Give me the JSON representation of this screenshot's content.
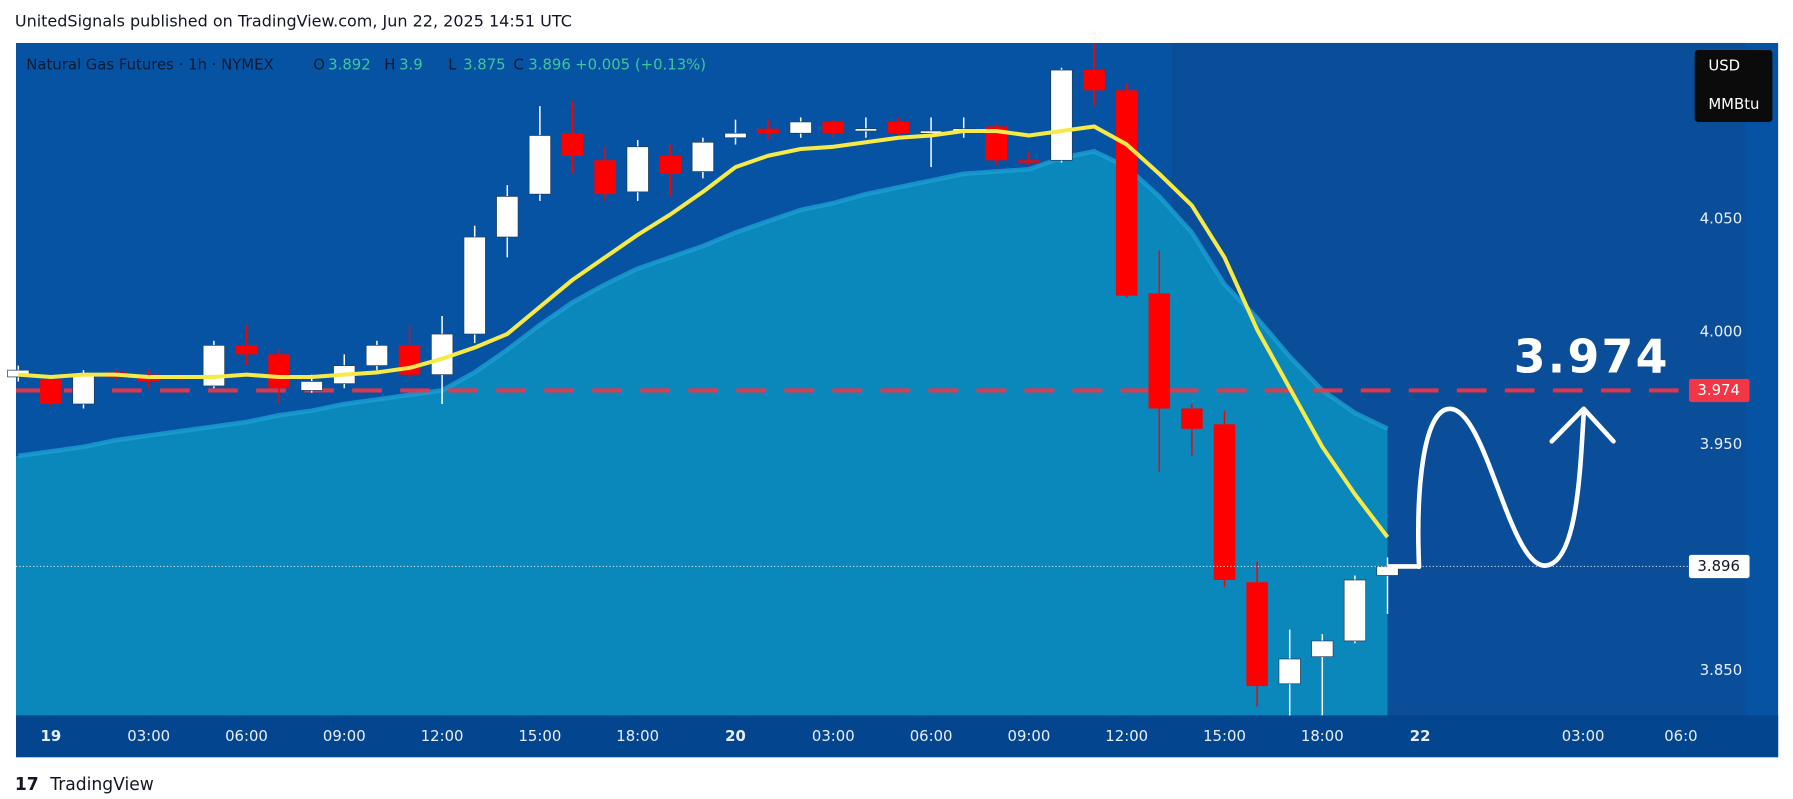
{
  "header": {
    "text": "UnitedSignals published on TradingView.com, Jun 22, 2025 14:51 UTC"
  },
  "footer": {
    "logo": "TradingView"
  },
  "chart_data": {
    "type": "candlestick",
    "title": "Natural Gas Futures · 1h · NYMEX",
    "ohlc_labels": [
      "O",
      "H",
      "L",
      "C"
    ],
    "change": "+0.005 (+0.13%)",
    "currency": "USD",
    "unit": "MMBtu",
    "x": [
      0,
      1,
      2,
      3,
      4,
      5,
      6,
      7,
      8,
      9,
      10,
      11,
      12,
      13,
      14,
      15,
      16,
      17,
      18,
      19,
      20,
      21,
      22,
      23,
      24,
      25,
      26,
      27,
      28,
      29,
      30,
      31,
      32,
      33,
      34,
      35,
      36,
      37,
      38,
      39,
      40,
      41,
      42
    ],
    "open": [
      3.98,
      3.979,
      3.968,
      3.982,
      3.981,
      3.98,
      3.976,
      3.994,
      3.99,
      3.974,
      3.977,
      3.985,
      3.994,
      3.981,
      3.999,
      4.042,
      4.061,
      4.088,
      4.076,
      4.062,
      4.078,
      4.071,
      4.086,
      4.09,
      4.088,
      4.093,
      4.089,
      4.093,
      4.088,
      4.089,
      4.091,
      4.076,
      4.076,
      4.116,
      4.107,
      4.017,
      3.966,
      3.959,
      3.889,
      3.844,
      3.856,
      3.863,
      3.892
    ],
    "high": [
      3.985,
      3.98,
      3.983,
      3.983,
      3.983,
      3.981,
      3.996,
      4.003,
      3.992,
      3.981,
      3.99,
      3.996,
      4.003,
      4.007,
      4.047,
      4.065,
      4.1,
      4.102,
      4.082,
      4.085,
      4.083,
      4.086,
      4.094,
      4.094,
      4.095,
      4.094,
      4.095,
      4.095,
      4.095,
      4.095,
      4.092,
      4.08,
      4.117,
      4.128,
      4.11,
      4.036,
      3.968,
      3.965,
      3.898,
      3.868,
      3.866,
      3.892,
      3.9
    ],
    "low": [
      3.978,
      3.967,
      3.966,
      3.979,
      3.975,
      3.978,
      3.975,
      3.985,
      3.968,
      3.973,
      3.975,
      3.983,
      3.979,
      3.968,
      3.995,
      4.033,
      4.058,
      4.07,
      4.058,
      4.058,
      4.06,
      4.068,
      4.083,
      4.085,
      4.086,
      4.086,
      4.086,
      4.085,
      4.073,
      4.086,
      4.074,
      4.074,
      4.075,
      4.1,
      4.015,
      3.938,
      3.945,
      3.887,
      3.834,
      3.83,
      3.83,
      3.862,
      3.875
    ],
    "close": [
      3.983,
      3.968,
      3.981,
      3.98,
      3.978,
      3.979,
      3.994,
      3.99,
      3.975,
      3.978,
      3.985,
      3.994,
      3.981,
      3.999,
      4.042,
      4.06,
      4.087,
      4.078,
      4.061,
      4.082,
      4.07,
      4.084,
      4.088,
      4.088,
      4.093,
      4.088,
      4.09,
      4.088,
      4.089,
      4.09,
      4.076,
      4.075,
      4.116,
      4.107,
      4.016,
      3.966,
      3.957,
      3.89,
      3.843,
      3.855,
      3.863,
      3.89,
      3.896
    ],
    "up_color": "#ffffff",
    "down_color": "#ff0000",
    "series": [
      {
        "color": "#f7ea48",
        "values": [
          3.981,
          3.98,
          3.981,
          3.981,
          3.98,
          3.98,
          3.98,
          3.981,
          3.98,
          3.98,
          3.981,
          3.982,
          3.984,
          3.988,
          3.993,
          3.999,
          4.011,
          4.023,
          4.033,
          4.043,
          4.052,
          4.062,
          4.073,
          4.078,
          4.081,
          4.082,
          4.084,
          4.086,
          4.087,
          4.089,
          4.089,
          4.087,
          4.089,
          4.091,
          4.083,
          4.07,
          4.056,
          4.033,
          4.001,
          3.975,
          3.949,
          3.928,
          3.909
        ]
      },
      {
        "color": "#1b9fd3",
        "area": true,
        "values": [
          3.945,
          3.947,
          3.949,
          3.952,
          3.954,
          3.956,
          3.958,
          3.96,
          3.963,
          3.965,
          3.968,
          3.97,
          3.972,
          3.974,
          3.982,
          3.992,
          4.003,
          4.013,
          4.021,
          4.028,
          4.033,
          4.038,
          4.044,
          4.049,
          4.054,
          4.057,
          4.061,
          4.064,
          4.067,
          4.07,
          4.071,
          4.072,
          4.077,
          4.08,
          4.073,
          4.06,
          4.044,
          4.021,
          4.006,
          3.989,
          3.974,
          3.964,
          3.957
        ]
      }
    ],
    "hline": {
      "value": 3.974,
      "color": "#f23645"
    },
    "xlim": [
      -0.07,
      53.0
    ],
    "ylim": [
      3.83,
      4.128
    ],
    "xticks": [
      {
        "value": 1,
        "label": "19"
      },
      {
        "value": 4,
        "label": "03:00"
      },
      {
        "value": 7,
        "label": "06:00"
      },
      {
        "value": 10,
        "label": "09:00"
      },
      {
        "value": 13,
        "label": "12:00"
      },
      {
        "value": 16,
        "label": "15:00"
      },
      {
        "value": 19,
        "label": "18:00"
      },
      {
        "value": 22,
        "label": "20"
      },
      {
        "value": 25,
        "label": "03:00"
      },
      {
        "value": 28,
        "label": "06:00"
      },
      {
        "value": 31,
        "label": "09:00"
      },
      {
        "value": 34,
        "label": "12:00"
      },
      {
        "value": 37,
        "label": "15:00"
      },
      {
        "value": 40,
        "label": "18:00"
      },
      {
        "value": 43,
        "label": "22"
      },
      {
        "value": 48,
        "label": "03:00"
      },
      {
        "value": 51,
        "label": "06:0"
      }
    ],
    "yticks": [
      {
        "value": 4.05,
        "label": "4.050"
      },
      {
        "value": 4.0,
        "label": "4.000"
      },
      {
        "value": 3.95,
        "label": "3.950"
      },
      {
        "value": 3.85,
        "label": "3.850"
      }
    ]
  }
}
